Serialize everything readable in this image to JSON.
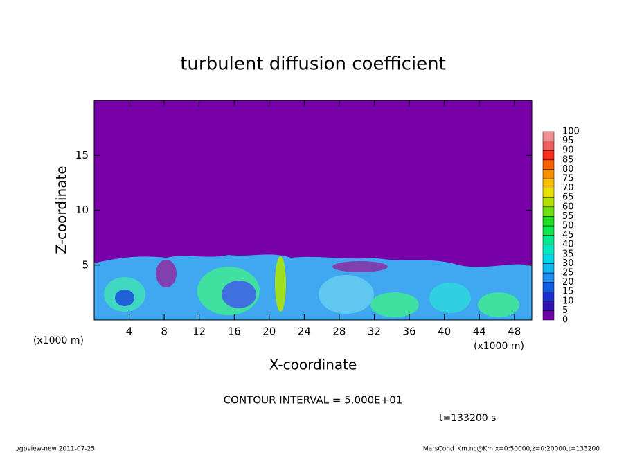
{
  "chart_data": {
    "type": "contour",
    "title": "turbulent diffusion coefficient",
    "xlabel": "X-coordinate",
    "ylabel": "Z-coordinate",
    "x_unit_labels": [
      "(x1000 m)",
      "(x1000 m)"
    ],
    "xlim": [
      0,
      50
    ],
    "xticks": [
      4,
      8,
      12,
      16,
      20,
      24,
      28,
      32,
      36,
      40,
      44,
      48
    ],
    "ylim": [
      0,
      20
    ],
    "yticks": [
      5,
      10,
      15
    ],
    "contour_interval": "CONTOUR INTERVAL = 5.000E+01",
    "time_label": "t=133200 s",
    "footer_left": "./gpview-new  2011-07-25",
    "footer_right": "MarsCond_Km.nc@Km,x=0:50000,z=0:20000,t=133200",
    "colorbar": {
      "levels": [
        0,
        5,
        10,
        15,
        20,
        25,
        30,
        35,
        40,
        45,
        50,
        55,
        60,
        65,
        70,
        75,
        80,
        85,
        90,
        95,
        100
      ],
      "colors": [
        "#7000a8",
        "#3010b0",
        "#1a30d0",
        "#1060e8",
        "#2090f0",
        "#10b8f0",
        "#00d8e8",
        "#00e8c0",
        "#00e890",
        "#10e850",
        "#20e020",
        "#70e010",
        "#b0e000",
        "#e8e000",
        "#f8c000",
        "#f89000",
        "#f86000",
        "#f83020",
        "#f06060",
        "#f09090"
      ]
    }
  }
}
